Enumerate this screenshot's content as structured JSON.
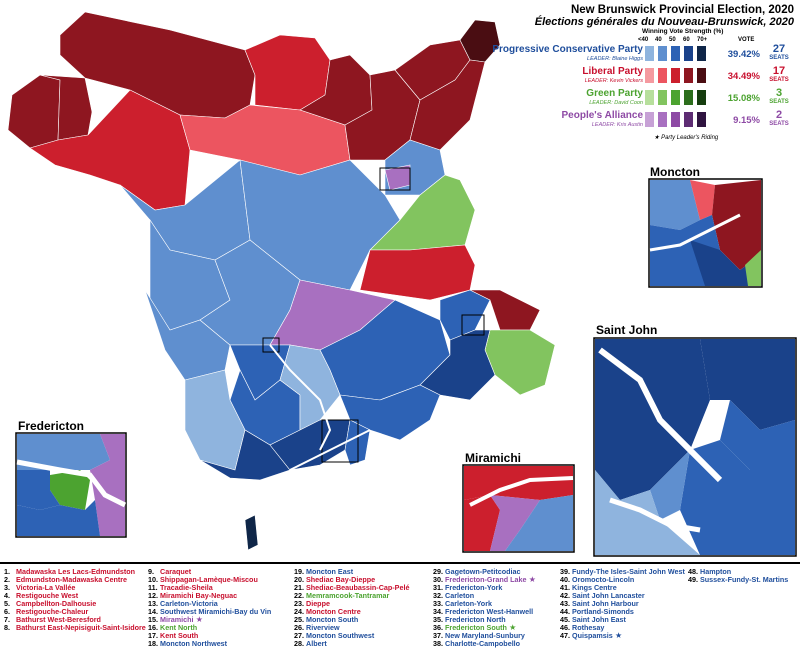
{
  "header": {
    "title": "New Brunswick Provincial Election, 2020",
    "subtitle": "Élections générales du Nouveau-Brunswick, 2020"
  },
  "strength_legend": {
    "title": "Winning Vote Strength (%)",
    "ticks": [
      "<40",
      "40",
      "50",
      "60",
      "70+"
    ],
    "vote_header": "VOTE"
  },
  "parties": [
    {
      "name": "Progressive Conservative Party",
      "leader": "LEADER: Blaine Higgs",
      "vote": "39.42%",
      "seats": "27",
      "seats_label": "SEATS",
      "color": "#1f4e9c",
      "shades": [
        "#8fb4de",
        "#5f8fcf",
        "#2d62b5",
        "#1a428a",
        "#0f2648"
      ]
    },
    {
      "name": "Liberal Party",
      "leader": "LEADER: Kevin Vickers",
      "vote": "34.49%",
      "seats": "17",
      "seats_label": "SEATS",
      "color": "#c8102e",
      "shades": [
        "#f59aa0",
        "#ec5560",
        "#cc1f2d",
        "#8e1620",
        "#4a0d12"
      ]
    },
    {
      "name": "Green Party",
      "leader": "LEADER: David Coon",
      "vote": "15.08%",
      "seats": "3",
      "seats_label": "SEATS",
      "color": "#4ca330",
      "shades": [
        "#b7df9c",
        "#82c45f",
        "#4ca330",
        "#2c6e1d",
        "#163d0f"
      ]
    },
    {
      "name": "People's Alliance",
      "leader": "LEADER: Kris Austin",
      "vote": "9.15%",
      "seats": "2",
      "seats_label": "SEATS",
      "color": "#8e4aa5",
      "shades": [
        "#c7a1d6",
        "#a870c0",
        "#8e4aa5",
        "#5d2c73",
        "#2f1440"
      ]
    }
  ],
  "star_note": "Party Leader's Riding",
  "insets": {
    "moncton": "Moncton",
    "saint_john": "Saint John",
    "fredericton": "Fredericton",
    "miramichi": "Miramichi"
  },
  "ridings": [
    {
      "num": "1.",
      "name": "Madawaska Les Lacs-Edmundston",
      "party": "red"
    },
    {
      "num": "2.",
      "name": "Edmundston-Madawaska Centre",
      "party": "red"
    },
    {
      "num": "3.",
      "name": "Victoria-La Vallée",
      "party": "red"
    },
    {
      "num": "4.",
      "name": "Restigouche West",
      "party": "red"
    },
    {
      "num": "5.",
      "name": "Campbellton-Dalhousie",
      "party": "red"
    },
    {
      "num": "6.",
      "name": "Restigouche-Chaleur",
      "party": "red"
    },
    {
      "num": "7.",
      "name": "Bathurst West-Beresford",
      "party": "red"
    },
    {
      "num": "8.",
      "name": "Bathurst East-Nepisiguit-Saint-Isidore",
      "party": "red"
    },
    {
      "num": "9.",
      "name": "Caraquet",
      "party": "red"
    },
    {
      "num": "10.",
      "name": "Shippagan-Lamèque-Miscou",
      "party": "red"
    },
    {
      "num": "11.",
      "name": "Tracadie-Sheila",
      "party": "red"
    },
    {
      "num": "12.",
      "name": "Miramichi Bay-Neguac",
      "party": "red"
    },
    {
      "num": "13.",
      "name": "Carleton-Victoria",
      "party": "blue"
    },
    {
      "num": "14.",
      "name": "Southwest Miramichi-Bay du Vin",
      "party": "blue"
    },
    {
      "num": "15.",
      "name": "Miramichi",
      "party": "purple"
    },
    {
      "num": "16.",
      "name": "Kent North",
      "party": "green"
    },
    {
      "num": "17.",
      "name": "Kent South",
      "party": "red"
    },
    {
      "num": "18.",
      "name": "Moncton Northwest",
      "party": "blue"
    },
    {
      "num": "19.",
      "name": "Moncton East",
      "party": "blue"
    },
    {
      "num": "20.",
      "name": "Shediac Bay-Dieppe",
      "party": "red"
    },
    {
      "num": "21.",
      "name": "Shediac-Beaubassin-Cap-Pelé",
      "party": "red"
    },
    {
      "num": "22.",
      "name": "Memramcook-Tantramar",
      "party": "green"
    },
    {
      "num": "23.",
      "name": "Dieppe",
      "party": "red"
    },
    {
      "num": "24.",
      "name": "Moncton Centre",
      "party": "red"
    },
    {
      "num": "25.",
      "name": "Moncton South",
      "party": "blue"
    },
    {
      "num": "26.",
      "name": "Riverview",
      "party": "blue"
    },
    {
      "num": "27.",
      "name": "Moncton Southwest",
      "party": "blue"
    },
    {
      "num": "28.",
      "name": "Albert",
      "party": "blue"
    },
    {
      "num": "29.",
      "name": "Gagetown-Petitcodiac",
      "party": "blue"
    },
    {
      "num": "30.",
      "name": "Fredericton-Grand Lake",
      "party": "purple"
    },
    {
      "num": "31.",
      "name": "Fredericton-York",
      "party": "blue"
    },
    {
      "num": "32.",
      "name": "Carleton",
      "party": "blue"
    },
    {
      "num": "33.",
      "name": "Carleton-York",
      "party": "blue"
    },
    {
      "num": "34.",
      "name": "Fredericton West-Hanwell",
      "party": "blue"
    },
    {
      "num": "35.",
      "name": "Fredericton North",
      "party": "blue"
    },
    {
      "num": "36.",
      "name": "Fredericton South",
      "party": "green"
    },
    {
      "num": "37.",
      "name": "New Maryland-Sunbury",
      "party": "blue"
    },
    {
      "num": "38.",
      "name": "Charlotte-Campobello",
      "party": "blue"
    },
    {
      "num": "39.",
      "name": "Fundy-The Isles-Saint John West",
      "party": "blue"
    },
    {
      "num": "40.",
      "name": "Oromocto-Lincoln",
      "party": "blue"
    },
    {
      "num": "41.",
      "name": "Kings Centre",
      "party": "blue"
    },
    {
      "num": "42.",
      "name": "Saint John Lancaster",
      "party": "blue"
    },
    {
      "num": "43.",
      "name": "Saint John Harbour",
      "party": "blue"
    },
    {
      "num": "44.",
      "name": "Portland-Simonds",
      "party": "blue"
    },
    {
      "num": "45.",
      "name": "Saint John East",
      "party": "blue"
    },
    {
      "num": "46.",
      "name": "Rothesay",
      "party": "blue"
    },
    {
      "num": "47.",
      "name": "Quispamsis",
      "party": "blue"
    },
    {
      "num": "48.",
      "name": "Hampton",
      "party": "blue"
    },
    {
      "num": "49.",
      "name": "Sussex-Fundy-St. Martins",
      "party": "blue"
    }
  ],
  "star_ridings": [
    "15.",
    "30.",
    "36.",
    "47."
  ]
}
